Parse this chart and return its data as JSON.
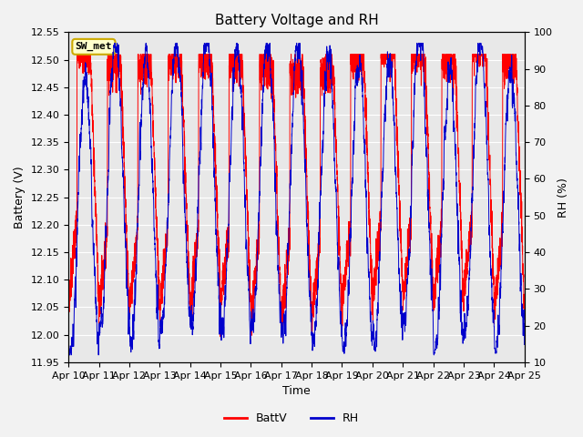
{
  "title": "Battery Voltage and RH",
  "xlabel": "Time",
  "ylabel_left": "Battery (V)",
  "ylabel_right": "RH (%)",
  "ylim_left": [
    11.95,
    12.55
  ],
  "ylim_right": [
    10,
    100
  ],
  "date_labels": [
    "Apr 10",
    "Apr 11",
    "Apr 12",
    "Apr 13",
    "Apr 14",
    "Apr 15",
    "Apr 16",
    "Apr 17",
    "Apr 18",
    "Apr 19",
    "Apr 20",
    "Apr 21",
    "Apr 22",
    "Apr 23",
    "Apr 24",
    "Apr 25"
  ],
  "batt_color": "#FF0000",
  "rh_color": "#0000CC",
  "legend_label_batt": "BattV",
  "legend_label_rh": "RH",
  "station_label": "SW_met",
  "fig_bg_color": "#F2F2F2",
  "plot_bg_color": "#E8E8E8",
  "grid_color": "#FFFFFF",
  "title_fontsize": 11,
  "axis_fontsize": 9,
  "tick_fontsize": 8,
  "legend_fontsize": 9,
  "seed": 7,
  "n_days": 15,
  "points_per_day": 288
}
